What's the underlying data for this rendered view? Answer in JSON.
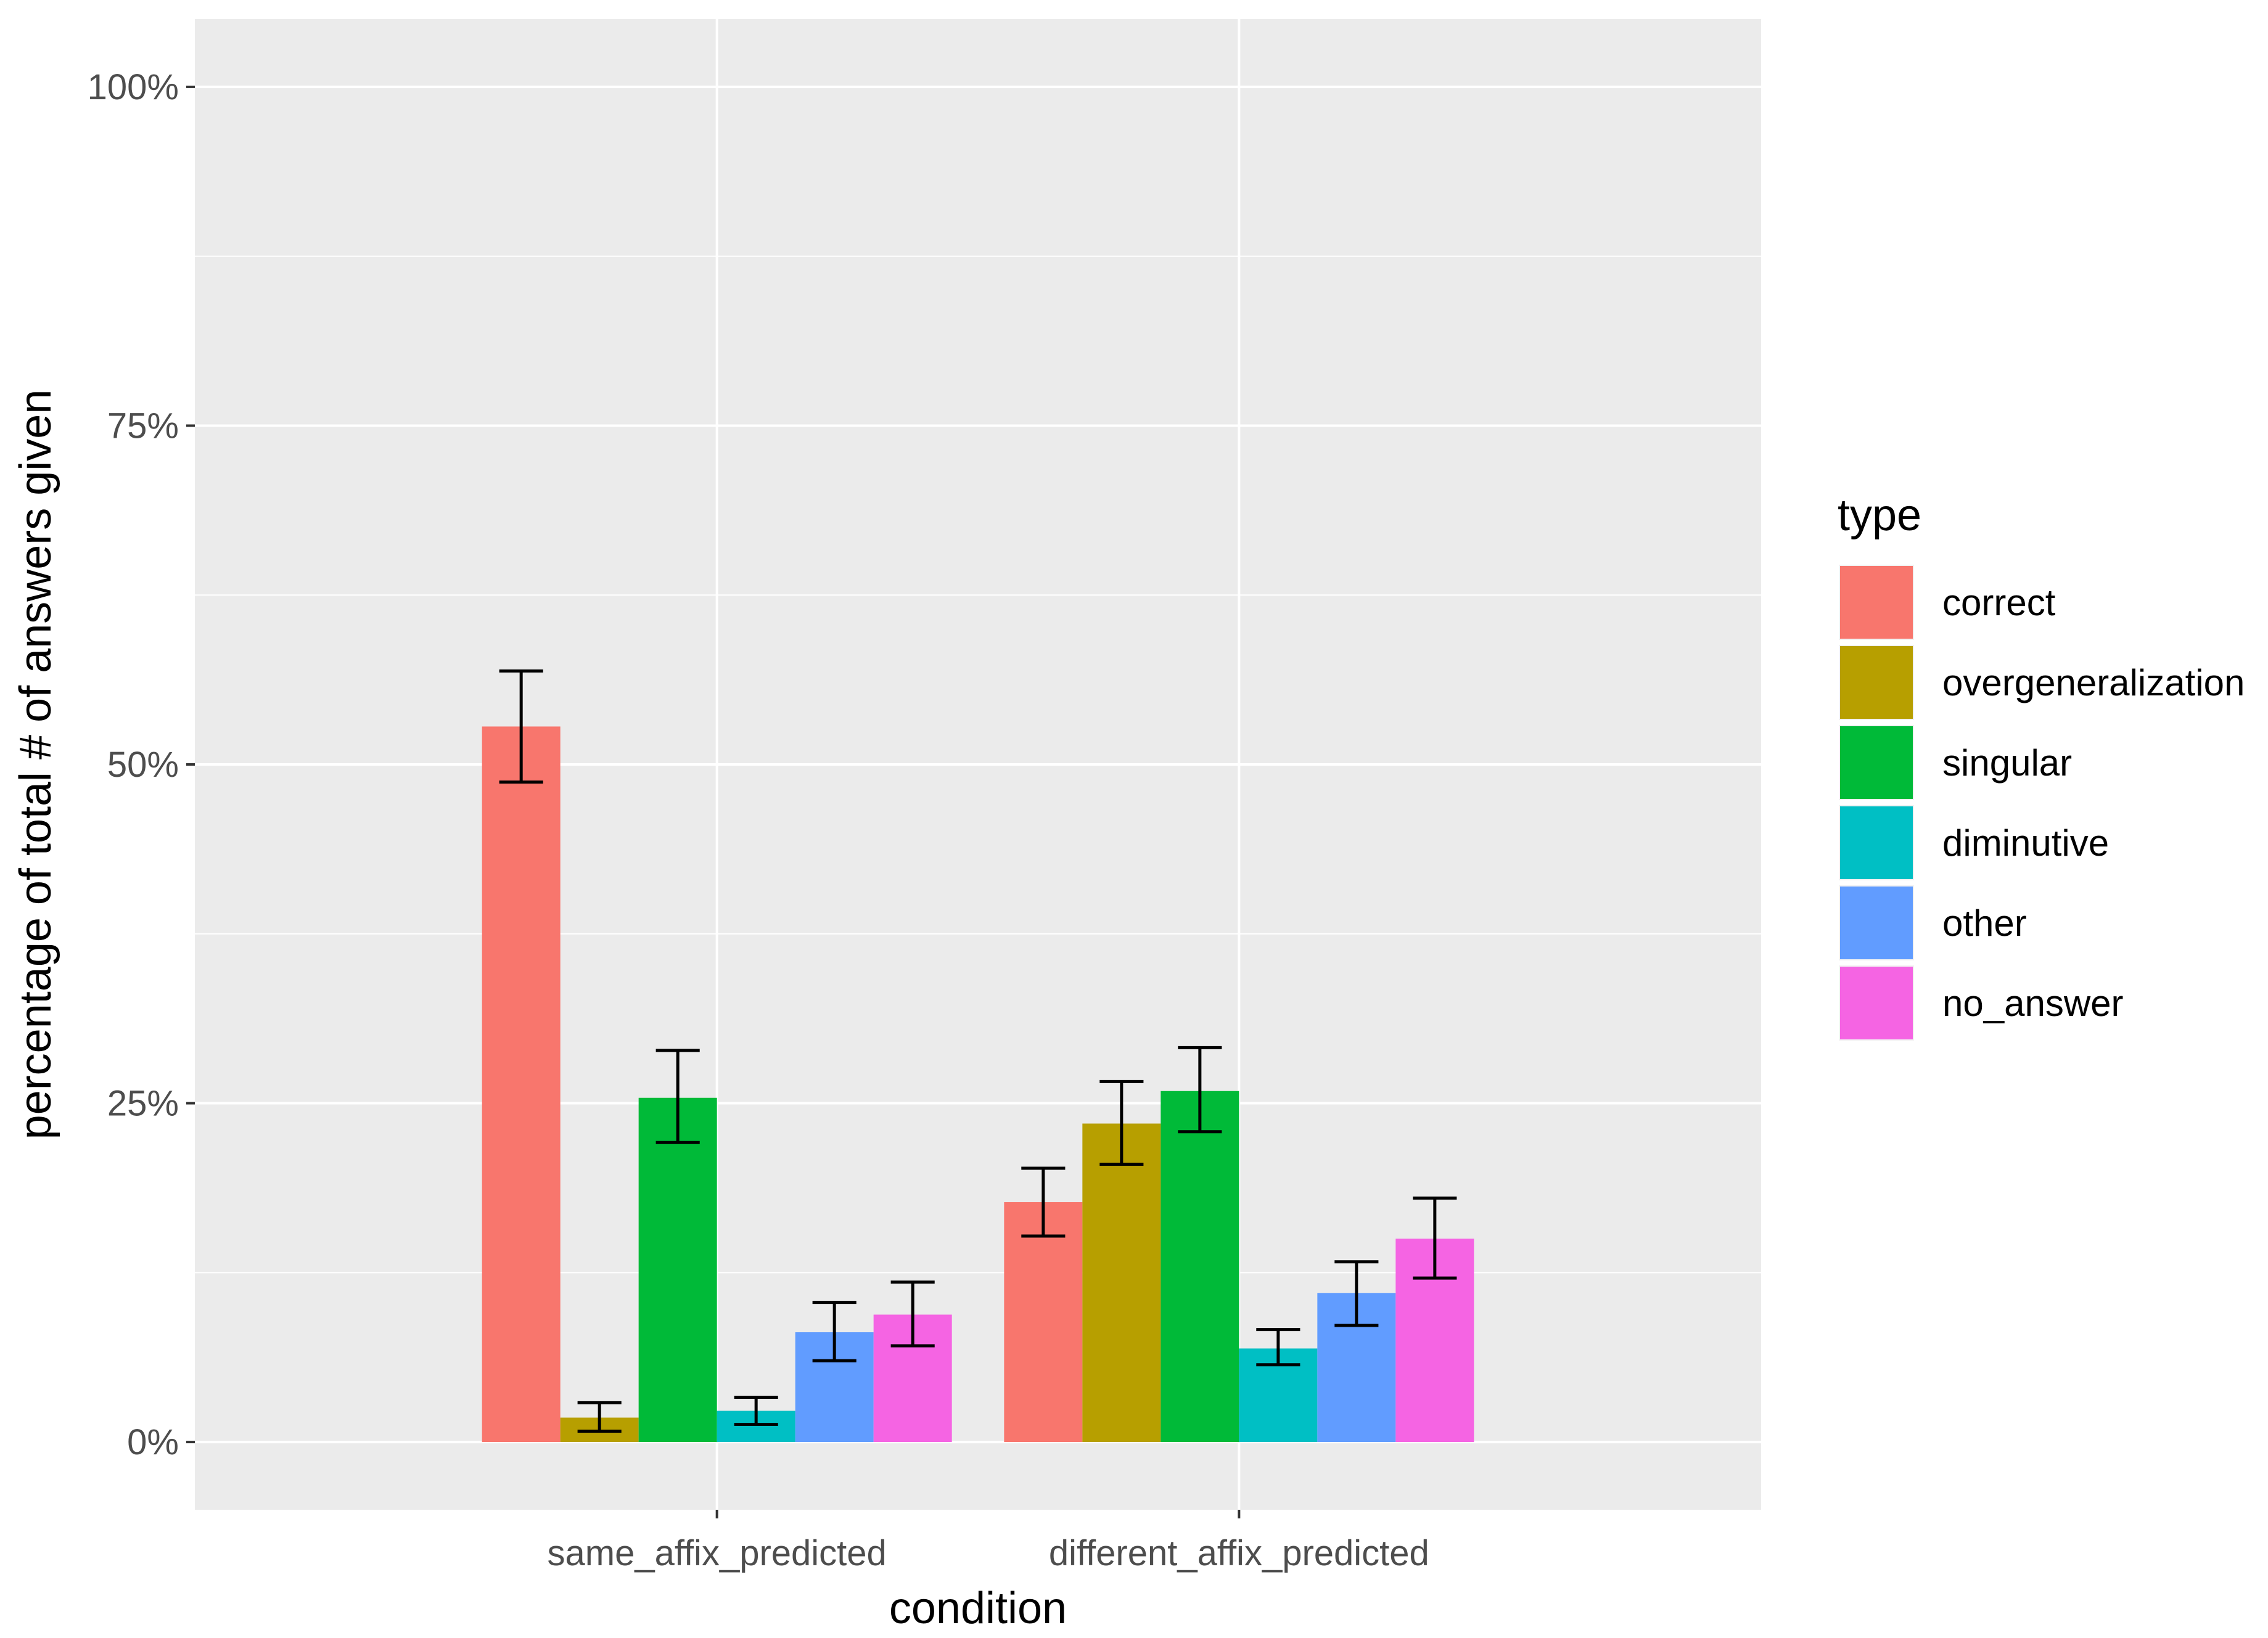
{
  "chart_data": {
    "type": "bar",
    "title": "",
    "xlabel": "condition",
    "ylabel": "percentage of total # of answers given",
    "categories": [
      "same_affix_predicted",
      "different_affix_predicted"
    ],
    "ylim": [
      -0.05,
      1.05
    ],
    "y_ticks": [
      {
        "value": 0,
        "label": "0%"
      },
      {
        "value": 0.25,
        "label": "25%"
      },
      {
        "value": 0.5,
        "label": "50%"
      },
      {
        "value": 0.75,
        "label": "75%"
      },
      {
        "value": 1.0,
        "label": "100%"
      }
    ],
    "grid": true,
    "legend": {
      "title": "type",
      "position": "right"
    },
    "series": [
      {
        "name": "correct",
        "color": "#F8766D",
        "values": [
          0.528,
          0.177
        ],
        "err_low": [
          0.487,
          0.152
        ],
        "err_high": [
          0.569,
          0.202
        ]
      },
      {
        "name": "overgeneralization",
        "color": "#B79F00",
        "values": [
          0.018,
          0.235
        ],
        "err_low": [
          0.008,
          0.205
        ],
        "err_high": [
          0.029,
          0.266
        ]
      },
      {
        "name": "singular",
        "color": "#00BA38",
        "values": [
          0.254,
          0.259
        ],
        "err_low": [
          0.221,
          0.229
        ],
        "err_high": [
          0.289,
          0.291
        ]
      },
      {
        "name": "diminutive",
        "color": "#00BFC4",
        "values": [
          0.023,
          0.069
        ],
        "err_low": [
          0.013,
          0.057
        ],
        "err_high": [
          0.033,
          0.083
        ]
      },
      {
        "name": "other",
        "color": "#619CFF",
        "values": [
          0.081,
          0.11
        ],
        "err_low": [
          0.06,
          0.086
        ],
        "err_high": [
          0.103,
          0.133
        ]
      },
      {
        "name": "no_answer",
        "color": "#F564E3",
        "values": [
          0.094,
          0.15
        ],
        "err_low": [
          0.071,
          0.121
        ],
        "err_high": [
          0.118,
          0.18
        ]
      }
    ]
  }
}
